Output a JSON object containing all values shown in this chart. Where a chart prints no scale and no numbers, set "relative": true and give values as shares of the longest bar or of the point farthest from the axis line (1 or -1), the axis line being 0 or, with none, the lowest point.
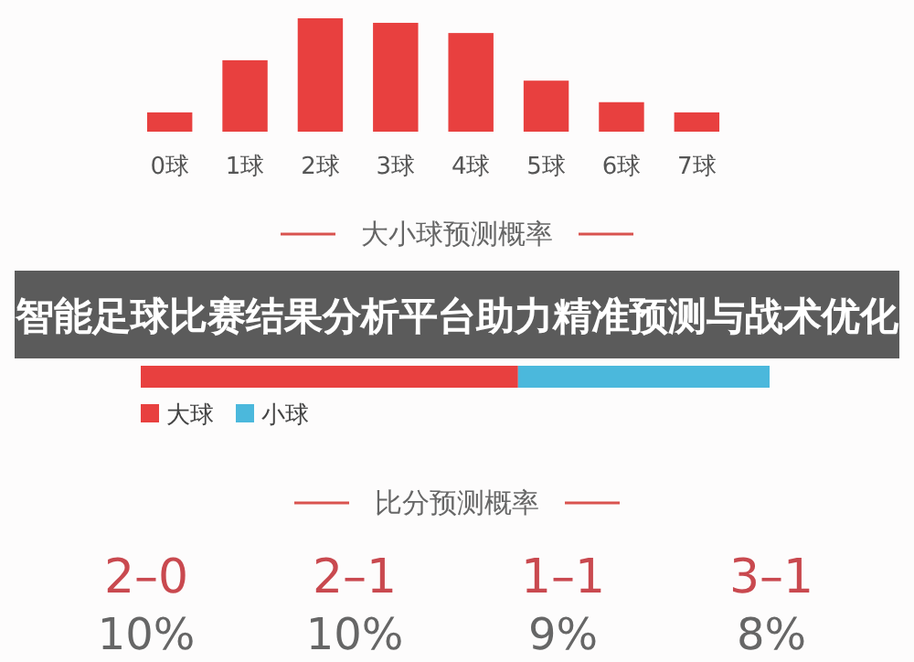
{
  "chart_data": [
    {
      "type": "bar",
      "title": "大小球预测概率",
      "categories": [
        "0球",
        "1球",
        "2球",
        "3球",
        "4球",
        "5球",
        "6球",
        "7球"
      ],
      "relative": true,
      "color": "#e8403f",
      "values": [
        0.17,
        0.63,
        1,
        0.96,
        0.87,
        0.45,
        0.26,
        0.17
      ]
    },
    {
      "type": "bar",
      "title": "智能足球比赛结果分析平台助力精准预测与战术优化",
      "orientation": "horizontal",
      "stacked": true,
      "relative": true,
      "categories": [
        null
      ],
      "legend": "bottom left",
      "series": [
        {
          "name": "大球",
          "color": "#e8403f",
          "values": [
            0.6
          ]
        },
        {
          "name": "小球",
          "color": "#4bb8dc",
          "values": [
            0.4
          ]
        }
      ]
    },
    {
      "type": "other",
      "title": "比分预测概率",
      "categories": [
        "2–0",
        "2–1",
        "1–1",
        "3–1"
      ],
      "value_labels": [
        "10%",
        "10%",
        "9%",
        "8%"
      ]
    }
  ]
}
